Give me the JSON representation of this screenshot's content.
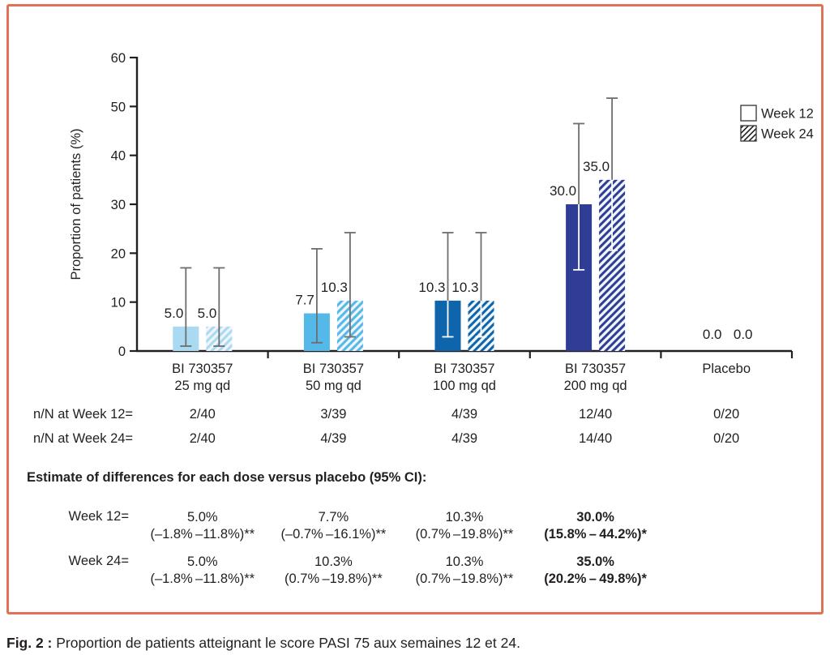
{
  "figure": {
    "border_color": "#df7257",
    "caption_prefix": "Fig. 2 :",
    "caption_text": " Proportion de patients atteignant le score PASI 75 aux semaines 12 et 24."
  },
  "chart_data": {
    "type": "bar",
    "title": "",
    "xlabel": "",
    "ylabel": "Proportion of patients (%)",
    "ylim": [
      0,
      60
    ],
    "yticks": [
      0,
      10,
      20,
      30,
      40,
      50,
      60
    ],
    "grid": false,
    "legend_position": "top-right",
    "legend": [
      {
        "label": "Week 12",
        "style": "solid-white"
      },
      {
        "label": "Week 24",
        "style": "hatched"
      }
    ],
    "axis_color": "#231f20",
    "error_bar_color": "#6d6e71",
    "hatch_background": "#eef5fc",
    "categories": [
      "BI 730357 25 mg qd",
      "BI 730357 50 mg qd",
      "BI 730357 100 mg qd",
      "BI 730357 200 mg qd",
      "Placebo"
    ],
    "series": [
      {
        "name": "Week 12",
        "values": [
          5.0,
          7.7,
          10.3,
          30.0,
          0.0
        ]
      },
      {
        "name": "Week 24",
        "values": [
          5.0,
          10.3,
          10.3,
          35.0,
          0.0
        ]
      }
    ],
    "groups": [
      {
        "label": [
          "BI 730357",
          "25 mg qd"
        ],
        "color": "#aad9f2",
        "dark": false,
        "week12": {
          "value": 5.0,
          "label": "5.0",
          "err": [
            1.0,
            17.0
          ]
        },
        "week24": {
          "value": 5.0,
          "label": "5.0",
          "err": [
            1.0,
            17.0
          ]
        }
      },
      {
        "label": [
          "BI 730357",
          "50 mg qd"
        ],
        "color": "#54b8e8",
        "dark": false,
        "week12": {
          "value": 7.7,
          "label": "7.7",
          "err": [
            1.7,
            20.9
          ]
        },
        "week24": {
          "value": 10.3,
          "label": "10.3",
          "err": [
            2.9,
            24.2
          ]
        }
      },
      {
        "label": [
          "BI 730357",
          "100 mg qd"
        ],
        "color": "#0f65ab",
        "dark": true,
        "week12": {
          "value": 10.3,
          "label": "10.3",
          "err": [
            2.9,
            24.2
          ]
        },
        "week24": {
          "value": 10.3,
          "label": "10.3",
          "err": [
            2.9,
            24.2
          ]
        }
      },
      {
        "label": [
          "BI 730357",
          "200 mg qd"
        ],
        "color": "#2f3d96",
        "dark": true,
        "week12": {
          "value": 30.0,
          "label": "30.0",
          "err": [
            16.6,
            46.5
          ]
        },
        "week24": {
          "value": 35.0,
          "label": "35.0",
          "err": [
            20.6,
            51.7
          ]
        }
      },
      {
        "label": [
          "Placebo"
        ],
        "color": null,
        "dark": false,
        "week12": {
          "value": 0.0,
          "label": "0.0",
          "err": null
        },
        "week24": {
          "value": 0.0,
          "label": "0.0",
          "err": null
        }
      }
    ]
  },
  "nn_table": {
    "row12_label": "n/N at Week 12=",
    "row24_label": "n/N at Week 24=",
    "row12_values": [
      "2/40",
      "3/39",
      "4/39",
      "12/40",
      "0/20"
    ],
    "row24_values": [
      "2/40",
      "4/39",
      "4/39",
      "14/40",
      "0/20"
    ]
  },
  "estimates": {
    "heading": "Estimate of differences for each dose versus placebo (95% CI):",
    "week12_label": "Week 12=",
    "week24_label": "Week 24=",
    "week12": [
      {
        "pct": "5.0%",
        "ci": "(–1.8% –11.8%)**",
        "bold": false
      },
      {
        "pct": "7.7%",
        "ci": "(–0.7% –16.1%)**",
        "bold": false
      },
      {
        "pct": "10.3%",
        "ci": "(0.7% –19.8%)**",
        "bold": false
      },
      {
        "pct": "30.0%",
        "ci": "(15.8% – 44.2%)*",
        "bold": true
      }
    ],
    "week24": [
      {
        "pct": "5.0%",
        "ci": "(–1.8% –11.8%)**",
        "bold": false
      },
      {
        "pct": "10.3%",
        "ci": "(0.7% –19.8%)**",
        "bold": false
      },
      {
        "pct": "10.3%",
        "ci": "(0.7% –19.8%)**",
        "bold": false
      },
      {
        "pct": "35.0%",
        "ci": "(20.2% – 49.8%)*",
        "bold": true
      }
    ]
  }
}
